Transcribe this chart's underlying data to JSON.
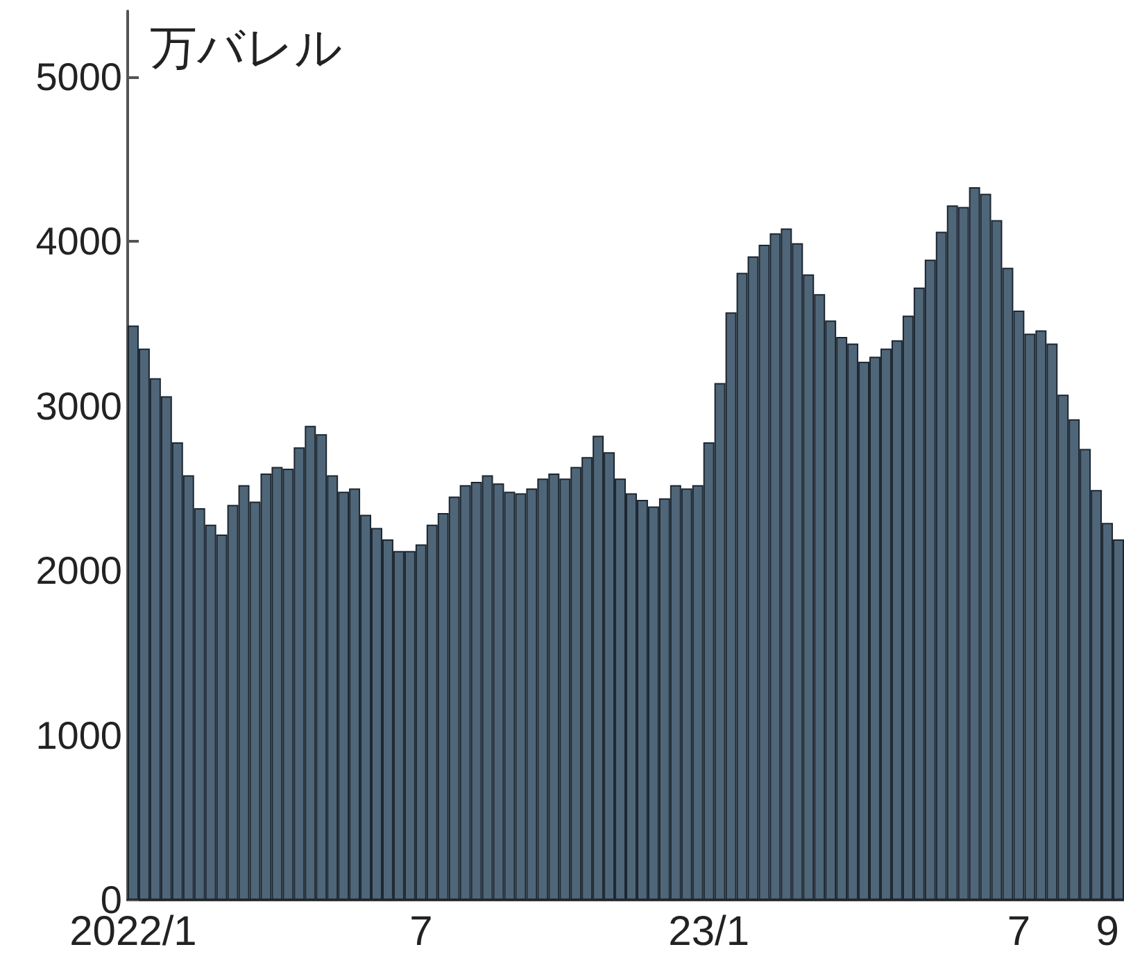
{
  "chart_data": {
    "type": "bar",
    "ylabel": "万バレル",
    "categories": [
      "2022/1",
      null,
      null,
      null,
      null,
      null,
      null,
      null,
      null,
      null,
      null,
      null,
      null,
      null,
      null,
      null,
      null,
      null,
      null,
      null,
      null,
      null,
      null,
      null,
      null,
      null,
      "7",
      null,
      null,
      null,
      null,
      null,
      null,
      null,
      null,
      null,
      null,
      null,
      null,
      null,
      null,
      null,
      null,
      null,
      null,
      null,
      null,
      null,
      null,
      null,
      null,
      null,
      "23/1",
      null,
      null,
      null,
      null,
      null,
      null,
      null,
      null,
      null,
      null,
      null,
      null,
      null,
      null,
      null,
      null,
      null,
      null,
      null,
      null,
      null,
      null,
      null,
      null,
      null,
      null,
      null,
      "7",
      null,
      null,
      null,
      null,
      null,
      null,
      null,
      "9",
      null
    ],
    "values": [
      3490,
      3350,
      3170,
      3060,
      2780,
      2580,
      2380,
      2280,
      2220,
      2400,
      2520,
      2420,
      2590,
      2630,
      2620,
      2750,
      2880,
      2830,
      2580,
      2480,
      2500,
      2340,
      2260,
      2190,
      2120,
      2120,
      2160,
      2280,
      2350,
      2450,
      2520,
      2540,
      2580,
      2530,
      2480,
      2470,
      2500,
      2560,
      2590,
      2560,
      2630,
      2690,
      2820,
      2720,
      2560,
      2470,
      2430,
      2390,
      2440,
      2520,
      2500,
      2520,
      2780,
      3140,
      3570,
      3810,
      3910,
      3980,
      4050,
      4080,
      3990,
      3800,
      3680,
      3520,
      3420,
      3380,
      3270,
      3300,
      3350,
      3400,
      3550,
      3720,
      3890,
      4060,
      4220,
      4210,
      4330,
      4290,
      4130,
      3840,
      3580,
      3440,
      3460,
      3380,
      3070,
      2920,
      2740,
      2490,
      2290,
      2190
    ],
    "color": "#4f6679",
    "ylim": [
      0,
      5400
    ],
    "yticks": [
      0,
      1000,
      2000,
      3000,
      4000,
      5000
    ],
    "grid": false
  }
}
